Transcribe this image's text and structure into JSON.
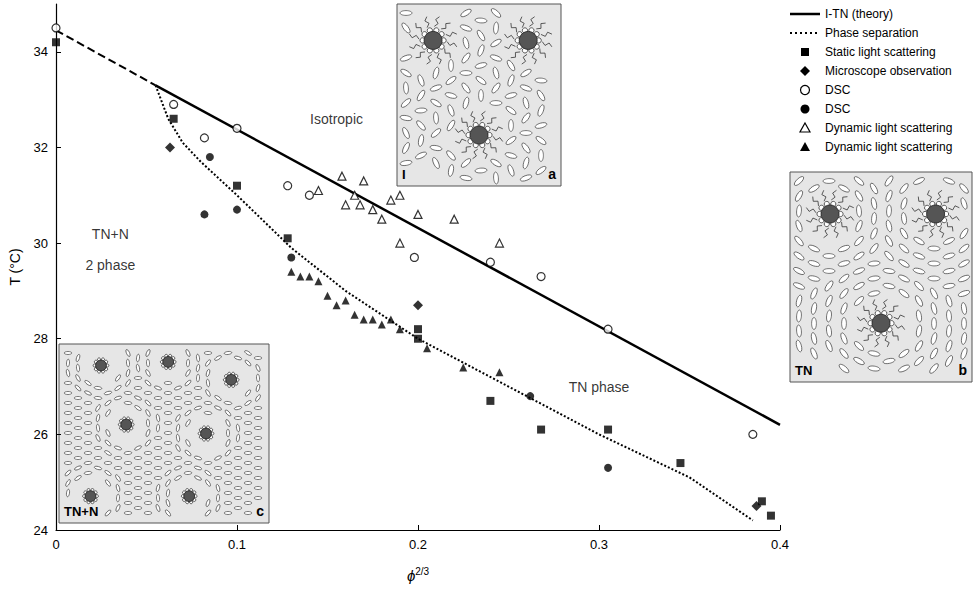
{
  "chart_data": {
    "type": "scatter",
    "xlabel": "ϕ",
    "xlabel_superscript": "2/3",
    "ylabel": "T (°C)",
    "xlim": [
      0,
      0.4
    ],
    "ylim": [
      24,
      35
    ],
    "xticks": [
      0,
      0.1,
      0.2,
      0.3,
      0.4
    ],
    "yticks": [
      24,
      26,
      28,
      30,
      32,
      34
    ],
    "grid": false,
    "legend": "right",
    "series": [
      {
        "name": "I-TN (theory)",
        "type": "line",
        "line_style": "solid",
        "color": "#000000",
        "x": [
          0.055,
          0.4
        ],
        "values": [
          33.3,
          26.2
        ]
      },
      {
        "name": "Phase separation",
        "type": "line",
        "line_style": "dotted",
        "color": "#000000",
        "x": [
          0.055,
          0.058,
          0.062,
          0.07,
          0.08,
          0.1,
          0.13,
          0.16,
          0.2,
          0.25,
          0.3,
          0.35,
          0.385
        ],
        "values": [
          33.3,
          33.0,
          32.6,
          32.1,
          31.7,
          31.0,
          29.9,
          29.0,
          28.0,
          27.0,
          26.0,
          25.1,
          24.2
        ]
      },
      {
        "name": "Static light scattering",
        "type": "scatter",
        "marker": "square",
        "color": "#000000",
        "x": [
          0,
          0.065,
          0.1,
          0.128,
          0.2,
          0.2,
          0.24,
          0.268,
          0.305,
          0.345,
          0.39,
          0.395
        ],
        "values": [
          34.2,
          32.6,
          31.2,
          30.1,
          28.2,
          28.0,
          26.7,
          26.1,
          26.1,
          25.4,
          24.6,
          24.3
        ]
      },
      {
        "name": "Microscope observation",
        "type": "scatter",
        "marker": "diamond",
        "color": "#000000",
        "x": [
          0.063,
          0.2,
          0.387
        ],
        "values": [
          32.0,
          28.7,
          24.5
        ]
      },
      {
        "name": "DSC",
        "type": "scatter",
        "marker": "circle-open",
        "color": "#000000",
        "x": [
          0,
          0.065,
          0.082,
          0.1,
          0.128,
          0.14,
          0.198,
          0.24,
          0.268,
          0.305,
          0.385
        ],
        "values": [
          34.5,
          32.9,
          32.2,
          32.4,
          31.2,
          31.0,
          29.7,
          29.6,
          29.3,
          28.2,
          26.0
        ]
      },
      {
        "name": "DSC",
        "type": "scatter",
        "marker": "circle",
        "color": "#000000",
        "x": [
          0.082,
          0.085,
          0.1,
          0.13,
          0.262,
          0.305
        ],
        "values": [
          30.6,
          31.8,
          30.7,
          29.7,
          26.8,
          25.3
        ]
      },
      {
        "name": "Dynamic light scattering",
        "type": "scatter",
        "marker": "triangle-open",
        "color": "#000000",
        "x": [
          0.145,
          0.158,
          0.16,
          0.165,
          0.168,
          0.17,
          0.175,
          0.18,
          0.185,
          0.19,
          0.19,
          0.2,
          0.22,
          0.245
        ],
        "values": [
          31.1,
          31.4,
          30.8,
          31.0,
          30.8,
          31.3,
          30.7,
          30.5,
          30.9,
          30.0,
          31.0,
          30.6,
          30.5,
          30.0
        ]
      },
      {
        "name": "Dynamic light scattering",
        "type": "scatter",
        "marker": "triangle",
        "color": "#000000",
        "x": [
          0.13,
          0.135,
          0.14,
          0.145,
          0.15,
          0.155,
          0.16,
          0.165,
          0.17,
          0.175,
          0.18,
          0.185,
          0.19,
          0.205,
          0.225,
          0.245
        ],
        "values": [
          29.4,
          29.3,
          29.3,
          29.2,
          28.9,
          28.7,
          28.8,
          28.5,
          28.4,
          28.4,
          28.3,
          28.4,
          28.2,
          27.8,
          27.4,
          27.3
        ]
      },
      {
        "type": "line",
        "line_style": "dashed",
        "color": "#000000",
        "x": [
          0,
          0.055
        ],
        "values": [
          34.45,
          33.3
        ]
      }
    ],
    "annotations": [
      {
        "text": "Isotropic",
        "x": 0.155,
        "y": 32.6
      },
      {
        "text": "TN+N",
        "x": 0.03,
        "y": 30.2
      },
      {
        "text": "2 phase",
        "x": 0.03,
        "y": 29.55
      },
      {
        "text": "TN phase",
        "x": 0.3,
        "y": 27.0
      }
    ],
    "insets": [
      {
        "label": "I",
        "letter": "a"
      },
      {
        "label": "TN",
        "letter": "b"
      },
      {
        "label": "TN+N",
        "letter": "c"
      }
    ]
  }
}
